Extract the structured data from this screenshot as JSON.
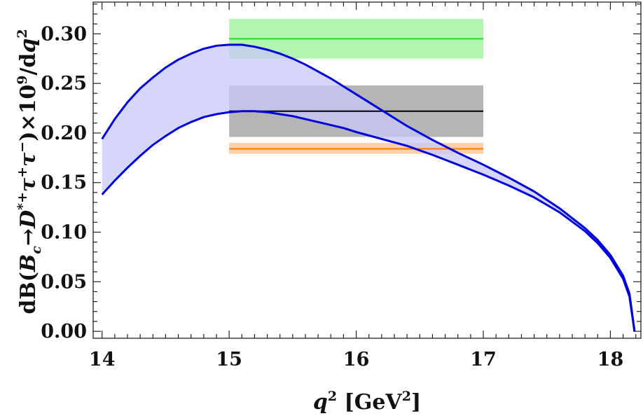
{
  "chart_data": {
    "type": "line",
    "xlim": [
      13.93,
      18.24
    ],
    "ylim": [
      -0.007,
      0.332
    ],
    "x_ticks": [
      14,
      15,
      16,
      17,
      18
    ],
    "x_tick_labels": [
      "14",
      "15",
      "16",
      "17",
      "18"
    ],
    "y_ticks": [
      0,
      0.05,
      0.1,
      0.15,
      0.2,
      0.25,
      0.3
    ],
    "y_tick_labels": [
      "0.00",
      "0.05",
      "0.10",
      "0.15",
      "0.20",
      "0.25",
      "0.30"
    ],
    "xlabel": {
      "base": "q",
      "sup": "2",
      "unit_open": " [GeV",
      "unit_sup": "2",
      "unit_close": "]"
    },
    "ylabel": {
      "p1": "dB(",
      "b": "B",
      "c": "c",
      "arrow": "→",
      "d": "D",
      "dsup": "*+",
      "tau1": "τ",
      "tau1sup": "+",
      "tau2": "τ",
      "tau2sup": "−",
      "times": ")×10",
      "exp": "9",
      "per": "/d",
      "q": "q",
      "qsup": "2"
    },
    "band": {
      "name": "theory prediction band",
      "color": "#0000dd",
      "fill": "#c8c8f8",
      "upper": [
        [
          14.0,
          0.194
        ],
        [
          14.1,
          0.214
        ],
        [
          14.2,
          0.231
        ],
        [
          14.3,
          0.245
        ],
        [
          14.4,
          0.256
        ],
        [
          14.5,
          0.266
        ],
        [
          14.6,
          0.274
        ],
        [
          14.7,
          0.28
        ],
        [
          14.8,
          0.285
        ],
        [
          14.9,
          0.288
        ],
        [
          15.0,
          0.289
        ],
        [
          15.1,
          0.289
        ],
        [
          15.2,
          0.287
        ],
        [
          15.3,
          0.284
        ],
        [
          15.4,
          0.28
        ],
        [
          15.5,
          0.275
        ],
        [
          15.6,
          0.269
        ],
        [
          15.7,
          0.262
        ],
        [
          15.8,
          0.255
        ],
        [
          15.9,
          0.247
        ],
        [
          16.0,
          0.239
        ],
        [
          16.2,
          0.223
        ],
        [
          16.4,
          0.207
        ],
        [
          16.6,
          0.193
        ],
        [
          16.8,
          0.18
        ],
        [
          17.0,
          0.168
        ],
        [
          17.2,
          0.155
        ],
        [
          17.4,
          0.141
        ],
        [
          17.6,
          0.124
        ],
        [
          17.8,
          0.104
        ],
        [
          17.9,
          0.092
        ],
        [
          18.0,
          0.077
        ],
        [
          18.1,
          0.056
        ],
        [
          18.15,
          0.038
        ],
        [
          18.19,
          0.0
        ]
      ],
      "lower": [
        [
          14.0,
          0.138
        ],
        [
          14.1,
          0.152
        ],
        [
          14.2,
          0.165
        ],
        [
          14.3,
          0.177
        ],
        [
          14.4,
          0.188
        ],
        [
          14.5,
          0.197
        ],
        [
          14.6,
          0.205
        ],
        [
          14.7,
          0.211
        ],
        [
          14.8,
          0.216
        ],
        [
          14.9,
          0.219
        ],
        [
          15.0,
          0.221
        ],
        [
          15.1,
          0.222
        ],
        [
          15.2,
          0.222
        ],
        [
          15.3,
          0.221
        ],
        [
          15.4,
          0.219
        ],
        [
          15.5,
          0.217
        ],
        [
          15.6,
          0.214
        ],
        [
          15.7,
          0.211
        ],
        [
          15.8,
          0.208
        ],
        [
          15.9,
          0.205
        ],
        [
          16.0,
          0.201
        ],
        [
          16.2,
          0.194
        ],
        [
          16.4,
          0.187
        ],
        [
          16.6,
          0.178
        ],
        [
          16.8,
          0.168
        ],
        [
          17.0,
          0.158
        ],
        [
          17.2,
          0.147
        ],
        [
          17.4,
          0.135
        ],
        [
          17.6,
          0.12
        ],
        [
          17.8,
          0.101
        ],
        [
          17.9,
          0.089
        ],
        [
          18.0,
          0.074
        ],
        [
          18.1,
          0.053
        ],
        [
          18.15,
          0.035
        ],
        [
          18.19,
          0.0
        ]
      ]
    },
    "boxes": [
      {
        "name": "green-band",
        "x": [
          15,
          17
        ],
        "y_center": 0.295,
        "y_low": 0.275,
        "y_high": 0.315,
        "line_color": "#22dd22",
        "fill": "#7cf07c",
        "opacity": 0.6
      },
      {
        "name": "black-band",
        "x": [
          15,
          17
        ],
        "y_center": 0.222,
        "y_low": 0.196,
        "y_high": 0.248,
        "line_color": "#000000",
        "fill": "#5a5a5a",
        "opacity": 0.45
      },
      {
        "name": "orange-band",
        "x": [
          15,
          17
        ],
        "y_center": 0.184,
        "y_low": 0.179,
        "y_high": 0.19,
        "line_color": "#ff7a00",
        "fill": "#ffb070",
        "opacity": 0.6
      }
    ]
  }
}
